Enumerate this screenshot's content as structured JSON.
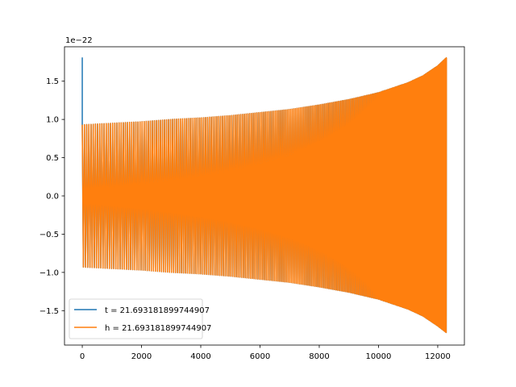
{
  "chart_data": {
    "type": "line",
    "title": "",
    "xlabel": "",
    "ylabel": "",
    "y_offset_label": "1e−22",
    "xlim": [
      -600,
      12900
    ],
    "ylim": [
      -1.95,
      1.95
    ],
    "y_multiplier": 1e-22,
    "x_ticks": [
      0,
      2000,
      4000,
      6000,
      8000,
      10000,
      12000
    ],
    "x_tick_labels": [
      "0",
      "2000",
      "4000",
      "6000",
      "8000",
      "10000",
      "12000"
    ],
    "y_ticks": [
      1.5,
      1.0,
      0.5,
      0.0,
      -0.5,
      -1.0,
      -1.5
    ],
    "y_tick_labels": [
      "1.5",
      "1.0",
      "0.5",
      "0.0",
      "−0.5",
      "−1.0",
      "−1.5"
    ],
    "grid": false,
    "legend_position": "lower-left",
    "series": [
      {
        "name": "t = 21.693181899744907",
        "color": "#1f77b4",
        "description_points": {
          "x": [
            0,
            0,
            12300
          ],
          "y": [
            1.81,
            0.93,
            1.81
          ]
        }
      },
      {
        "name": "h = 21.693181899744907",
        "color": "#ff7f0e",
        "envelope": {
          "x": [
            0,
            1000,
            2000,
            3000,
            4000,
            5000,
            6000,
            7000,
            8000,
            9000,
            10000,
            11000,
            11500,
            12000,
            12300
          ],
          "upper": [
            0.93,
            0.95,
            0.97,
            1.0,
            1.02,
            1.05,
            1.09,
            1.13,
            1.19,
            1.26,
            1.35,
            1.48,
            1.57,
            1.7,
            1.81
          ],
          "lower": [
            -0.93,
            -0.95,
            -0.97,
            -1.0,
            -1.02,
            -1.05,
            -1.09,
            -1.13,
            -1.19,
            -1.26,
            -1.35,
            -1.48,
            -1.57,
            -1.7,
            -1.79
          ]
        }
      }
    ]
  }
}
